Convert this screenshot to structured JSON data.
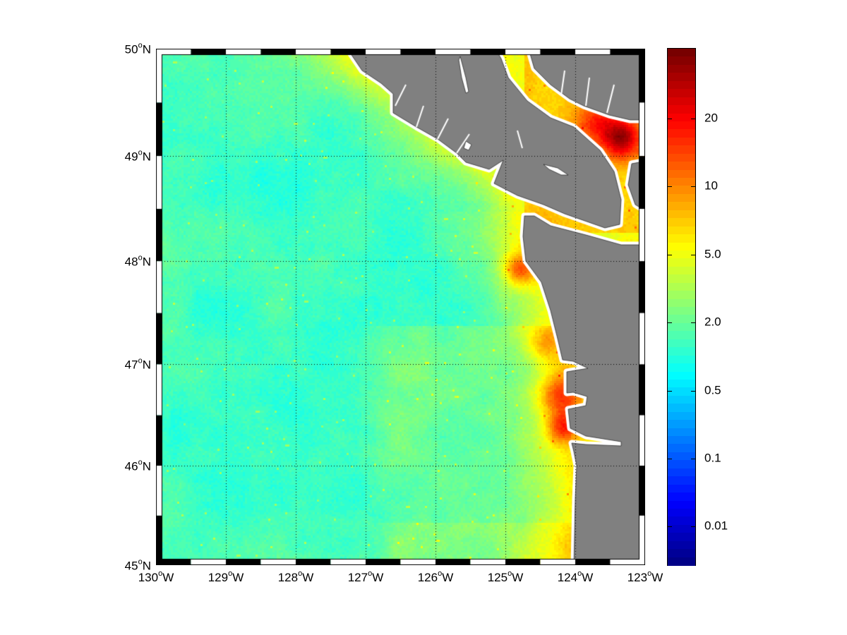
{
  "map": {
    "lon_range": [
      -130,
      -123
    ],
    "lat_range": [
      45,
      50
    ],
    "projection": "mercator",
    "land_color": "#808080",
    "coast_buffer_color": "#ffffff",
    "grid": "dotted",
    "colormap": "jet",
    "degree_symbol": "o",
    "lat_labels": [
      {
        "value": 50,
        "deg": "50",
        "hem": "N"
      },
      {
        "value": 49,
        "deg": "49",
        "hem": "N"
      },
      {
        "value": 48,
        "deg": "48",
        "hem": "N"
      },
      {
        "value": 47,
        "deg": "47",
        "hem": "N"
      },
      {
        "value": 46,
        "deg": "46",
        "hem": "N"
      },
      {
        "value": 45,
        "deg": "45",
        "hem": "N"
      }
    ],
    "lon_labels": [
      {
        "value": -130,
        "deg": "130",
        "hem": "W"
      },
      {
        "value": -129,
        "deg": "129",
        "hem": "W"
      },
      {
        "value": -128,
        "deg": "128",
        "hem": "W"
      },
      {
        "value": -127,
        "deg": "127",
        "hem": "W"
      },
      {
        "value": -126,
        "deg": "126",
        "hem": "W"
      },
      {
        "value": -125,
        "deg": "125",
        "hem": "W"
      },
      {
        "value": -124,
        "deg": "124",
        "hem": "W"
      },
      {
        "value": -123,
        "deg": "123",
        "hem": "W"
      }
    ]
  },
  "colorbar": {
    "levels": 64,
    "ticks": [
      "20",
      "10",
      "5.0",
      "2.0",
      "0.5",
      "0.1",
      "0.01"
    ]
  }
}
